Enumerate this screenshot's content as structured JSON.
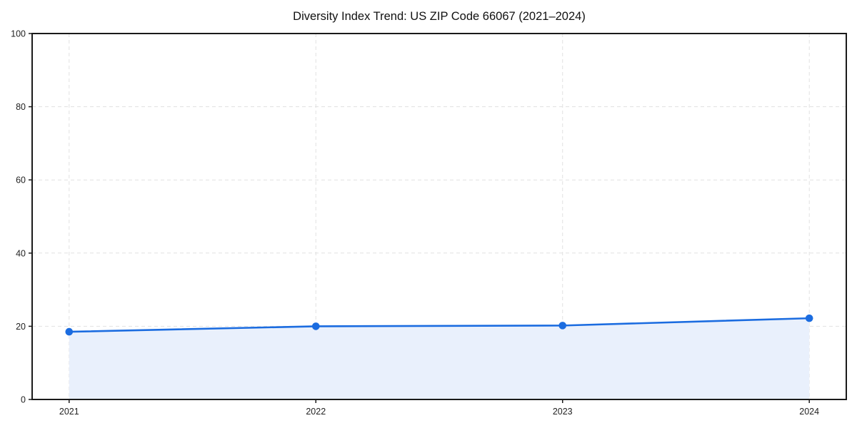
{
  "chart_data": {
    "type": "area",
    "title": "Diversity Index Trend: US ZIP Code 66067 (2021–2024)",
    "categories": [
      "2021",
      "2022",
      "2023",
      "2024"
    ],
    "x": [
      2021,
      2022,
      2023,
      2024
    ],
    "series": [
      {
        "name": "Diversity Index",
        "values": [
          18.5,
          20.0,
          20.2,
          22.2
        ]
      }
    ],
    "xlabel": "",
    "ylabel": "",
    "ylim": [
      0,
      100
    ],
    "yticks": [
      0,
      20,
      40,
      60,
      80,
      100
    ],
    "grid": "dashed-both-axes",
    "legend_position": "none",
    "frame": "boxed",
    "colors": {
      "line": "#1b6ce0",
      "marker": "#1b6ce0",
      "fill": "#e9f0fc",
      "grid": "#e1e1e1",
      "spine": "#1a1a1a",
      "title_text": "#111111",
      "tick_text": "#222222",
      "background": "#ffffff"
    }
  }
}
